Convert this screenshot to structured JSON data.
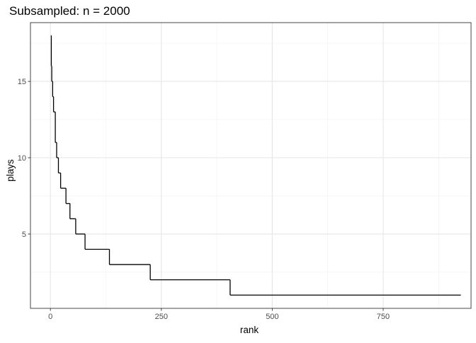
{
  "chart_data": {
    "type": "line",
    "title": "Subsampled: n = 2000",
    "xlabel": "rank",
    "ylabel": "plays",
    "xlim": [
      -45,
      948
    ],
    "ylim": [
      0.13,
      18.85
    ],
    "x_ticks": [
      0,
      250,
      500,
      750
    ],
    "x_tick_labels": [
      "0",
      "250",
      "500",
      "750"
    ],
    "y_ticks": [
      5,
      10,
      15
    ],
    "y_tick_labels": [
      "5",
      "10",
      "15"
    ],
    "x_minor_ticks": [
      125,
      375,
      625,
      875
    ],
    "y_minor_ticks": [
      2.5,
      7.5,
      12.5,
      17.5
    ],
    "grid": true,
    "legend": "none",
    "series": [
      {
        "color": "#000000",
        "steps": [
          {
            "rank_start": 1,
            "rank_end": 2,
            "plays": 18
          },
          {
            "rank_start": 2,
            "rank_end": 3,
            "plays": 16
          },
          {
            "rank_start": 3,
            "rank_end": 5,
            "plays": 15
          },
          {
            "rank_start": 5,
            "rank_end": 7,
            "plays": 14
          },
          {
            "rank_start": 7,
            "rank_end": 11,
            "plays": 13
          },
          {
            "rank_start": 11,
            "rank_end": 14,
            "plays": 11
          },
          {
            "rank_start": 14,
            "rank_end": 18,
            "plays": 10
          },
          {
            "rank_start": 18,
            "rank_end": 23,
            "plays": 9
          },
          {
            "rank_start": 23,
            "rank_end": 35,
            "plays": 8
          },
          {
            "rank_start": 35,
            "rank_end": 44,
            "plays": 7
          },
          {
            "rank_start": 44,
            "rank_end": 57,
            "plays": 6
          },
          {
            "rank_start": 57,
            "rank_end": 78,
            "plays": 5
          },
          {
            "rank_start": 78,
            "rank_end": 133,
            "plays": 4
          },
          {
            "rank_start": 133,
            "rank_end": 225,
            "plays": 3
          },
          {
            "rank_start": 225,
            "rank_end": 405,
            "plays": 2
          },
          {
            "rank_start": 405,
            "rank_end": 925,
            "plays": 1
          }
        ]
      }
    ]
  }
}
